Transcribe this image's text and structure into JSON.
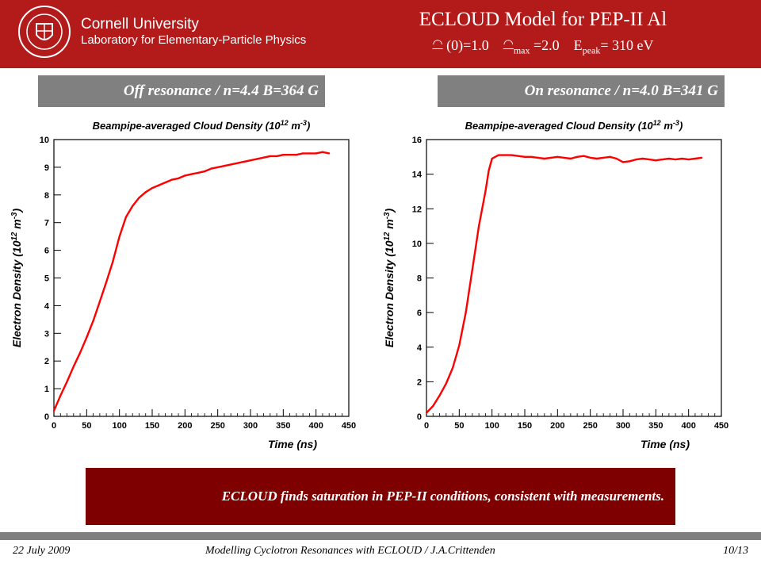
{
  "header": {
    "university": "Cornell University",
    "laboratory": "Laboratory for Elementary-Particle Physics",
    "title": "ECLOUD Model for PEP-II Al",
    "params": {
      "delta0": "(0)=1.0",
      "deltamax_sub": "max",
      "deltamax_val": "=2.0",
      "epeak_prefix": "E",
      "epeak_sub": "peak",
      "epeak_val": "= 310 eV"
    }
  },
  "colors": {
    "banner": "#b31b1b",
    "conclusion_bg": "#7e0000",
    "panel_label_bg": "#808080",
    "curve": "#ff0000"
  },
  "panels": {
    "left_label": "Off resonance / n=4.4 B=364 G",
    "right_label": "On resonance / n=4.0 B=341 G"
  },
  "chart_data": [
    {
      "type": "line",
      "title": "Beampipe-averaged Cloud Density (10^12 m^-3)",
      "xlabel": "Time (ns)",
      "ylabel": "Electron Density (10^12 m^-3)",
      "xlim": [
        0,
        450
      ],
      "ylim": [
        0,
        10
      ],
      "xticks": [
        0,
        50,
        100,
        150,
        200,
        250,
        300,
        350,
        400,
        450
      ],
      "yticks": [
        0,
        1,
        2,
        3,
        4,
        5,
        6,
        7,
        8,
        9,
        10
      ],
      "grid": false,
      "series": [
        {
          "color": "#ff0000",
          "x": [
            0,
            10,
            20,
            30,
            40,
            50,
            60,
            70,
            80,
            90,
            100,
            110,
            120,
            130,
            140,
            150,
            160,
            170,
            180,
            190,
            200,
            210,
            220,
            230,
            240,
            250,
            260,
            270,
            280,
            290,
            300,
            310,
            320,
            330,
            340,
            350,
            360,
            370,
            380,
            390,
            400,
            410,
            420
          ],
          "y": [
            0.2,
            0.75,
            1.25,
            1.8,
            2.3,
            2.85,
            3.45,
            4.15,
            4.85,
            5.6,
            6.5,
            7.2,
            7.6,
            7.9,
            8.1,
            8.25,
            8.35,
            8.45,
            8.55,
            8.6,
            8.7,
            8.75,
            8.8,
            8.85,
            8.95,
            9.0,
            9.05,
            9.1,
            9.15,
            9.2,
            9.25,
            9.3,
            9.35,
            9.4,
            9.4,
            9.45,
            9.45,
            9.45,
            9.5,
            9.5,
            9.5,
            9.55,
            9.5
          ]
        }
      ]
    },
    {
      "type": "line",
      "title": "Beampipe-averaged Cloud Density (10^12 m^-3)",
      "xlabel": "Time (ns)",
      "ylabel": "Electron Density (10^12 m^-3)",
      "xlim": [
        0,
        450
      ],
      "ylim": [
        0,
        16
      ],
      "xticks": [
        0,
        50,
        100,
        150,
        200,
        250,
        300,
        350,
        400,
        450
      ],
      "yticks": [
        0,
        2,
        4,
        6,
        8,
        10,
        12,
        14,
        16
      ],
      "grid": false,
      "series": [
        {
          "color": "#ff0000",
          "x": [
            0,
            10,
            20,
            30,
            40,
            50,
            60,
            70,
            80,
            90,
            95,
            100,
            110,
            120,
            130,
            140,
            150,
            160,
            170,
            180,
            190,
            200,
            210,
            220,
            230,
            240,
            250,
            260,
            270,
            280,
            290,
            300,
            310,
            320,
            330,
            340,
            350,
            360,
            370,
            380,
            390,
            400,
            410,
            420
          ],
          "y": [
            0.2,
            0.6,
            1.2,
            1.9,
            2.8,
            4.1,
            6.0,
            8.5,
            11.0,
            13.0,
            14.2,
            14.9,
            15.1,
            15.1,
            15.1,
            15.05,
            15.0,
            15.0,
            14.95,
            14.9,
            14.95,
            15.0,
            14.95,
            14.9,
            15.0,
            15.05,
            14.95,
            14.9,
            14.95,
            15.0,
            14.9,
            14.7,
            14.75,
            14.85,
            14.9,
            14.85,
            14.8,
            14.85,
            14.9,
            14.85,
            14.9,
            14.85,
            14.9,
            14.95
          ]
        }
      ]
    }
  ],
  "conclusion": "ECLOUD finds saturation in PEP-II conditions, consistent with measurements.",
  "footer": {
    "date": "22 July 2009",
    "center": "Modelling Cyclotron Resonances with ECLOUD / J.A.Crittenden",
    "page": "10/13"
  }
}
